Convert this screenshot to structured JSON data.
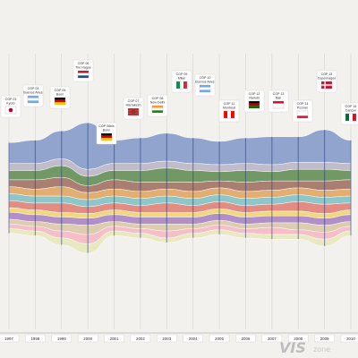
{
  "chart_data": {
    "type": "area",
    "title": "",
    "xlabel": "",
    "ylabel": "",
    "categories": [
      "1997",
      "1998",
      "1999",
      "2000",
      "2001",
      "2002",
      "2003",
      "2004",
      "2005",
      "2006",
      "2007",
      "2008",
      "2009",
      "2010"
    ],
    "conferences": [
      {
        "cop": "COP 03",
        "city": "Kyoto",
        "flag": "japan"
      },
      {
        "cop": "COP 04",
        "city": "Buenos Aires",
        "flag": "argentina"
      },
      {
        "cop": "COP 05",
        "city": "Bonn",
        "flag": "germany"
      },
      {
        "cop": "COP 06",
        "city": "The Hague",
        "flag": "netherlands"
      },
      {
        "cop": "COP 06bis",
        "city": "Bonn",
        "flag": "germany"
      },
      {
        "cop": "COP 07",
        "city": "Marrakesh",
        "flag": "morocco"
      },
      {
        "cop": "COP 08",
        "city": "New Delhi",
        "flag": "india"
      },
      {
        "cop": "COP 09",
        "city": "Milan",
        "flag": "italy"
      },
      {
        "cop": "COP 10",
        "city": "Buenos Aires",
        "flag": "argentina"
      },
      {
        "cop": "COP 11",
        "city": "Montreal",
        "flag": "canada"
      },
      {
        "cop": "COP 12",
        "city": "Nairobi",
        "flag": "kenya"
      },
      {
        "cop": "COP 13",
        "city": "Bali",
        "flag": "indonesia"
      },
      {
        "cop": "COP 14",
        "city": "Poznan",
        "flag": "poland"
      },
      {
        "cop": "COP 15",
        "city": "Copenhagen",
        "flag": "denmark"
      },
      {
        "cop": "COP 16",
        "city": "Cancun",
        "flag": "mexico"
      }
    ],
    "series": [
      {
        "color": "#7f97c8",
        "values": [
          9,
          10,
          12,
          20,
          10,
          11,
          12,
          11,
          10,
          11,
          12,
          11,
          14,
          10
        ]
      },
      {
        "color": "#b9b3c6",
        "values": [
          3,
          3,
          3,
          3,
          3,
          3,
          3,
          3,
          3,
          3,
          3,
          3,
          3,
          3
        ]
      },
      {
        "color": "#5c8a4c",
        "values": [
          4,
          4,
          5,
          4,
          4,
          5,
          6,
          5,
          4,
          5,
          4,
          5,
          5,
          4
        ]
      },
      {
        "color": "#9d6b5a",
        "values": [
          3,
          4,
          4,
          3,
          4,
          4,
          3,
          4,
          3,
          4,
          4,
          3,
          4,
          4
        ]
      },
      {
        "color": "#e0a25b",
        "values": [
          3,
          3,
          4,
          3,
          3,
          3,
          3,
          3,
          3,
          3,
          3,
          3,
          3,
          3
        ]
      },
      {
        "color": "#7bc0c3",
        "values": [
          3,
          3,
          3,
          3,
          3,
          3,
          3,
          3,
          3,
          3,
          3,
          3,
          3,
          3
        ]
      },
      {
        "color": "#e07a70",
        "values": [
          3,
          3,
          4,
          3,
          3,
          3,
          4,
          3,
          3,
          3,
          3,
          4,
          4,
          3
        ]
      },
      {
        "color": "#f0d36a",
        "values": [
          2,
          2,
          2,
          2,
          2,
          2,
          2,
          2,
          2,
          2,
          2,
          2,
          2,
          2
        ]
      },
      {
        "color": "#a57fbf",
        "values": [
          3,
          3,
          3,
          3,
          3,
          3,
          3,
          3,
          3,
          3,
          3,
          3,
          3,
          3
        ]
      },
      {
        "color": "#d9c6a3",
        "values": [
          2,
          2,
          3,
          4,
          2,
          2,
          3,
          2,
          2,
          2,
          2,
          3,
          3,
          2
        ]
      },
      {
        "color": "#f4b6c1",
        "values": [
          2,
          2,
          3,
          4,
          2,
          2,
          3,
          2,
          2,
          2,
          3,
          2,
          3,
          2
        ]
      },
      {
        "color": "#e6e6b8",
        "values": [
          2,
          2,
          3,
          4,
          2,
          2,
          2,
          2,
          2,
          2,
          2,
          2,
          3,
          2
        ]
      }
    ]
  }
}
